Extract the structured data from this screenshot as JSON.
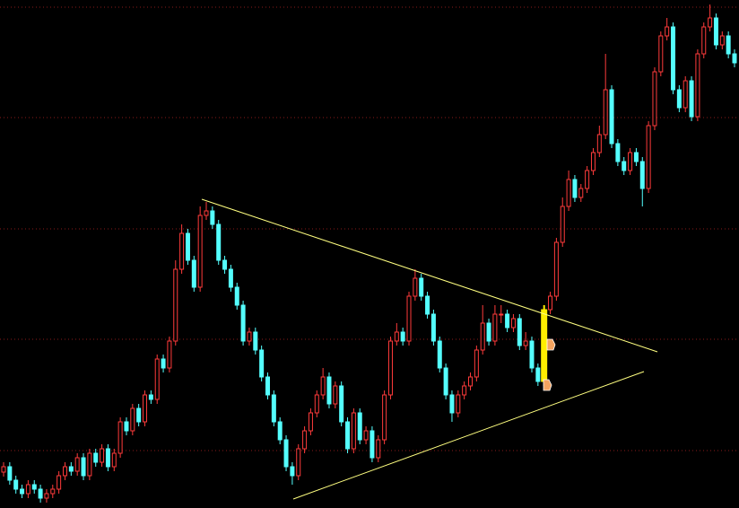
{
  "chart_data": {
    "type": "candlestick",
    "ylim": [
      0,
      566
    ],
    "up_color": "#ff3b3b",
    "down_color": "#54ffff",
    "highlight": {
      "index": 88,
      "color": "#ffee00"
    },
    "open": [
      40,
      46,
      31,
      21,
      16,
      26,
      21,
      11,
      16,
      21,
      36,
      46,
      41,
      56,
      36,
      61,
      51,
      66,
      46,
      61,
      96,
      86,
      111,
      96,
      126,
      121,
      166,
      156,
      186,
      266,
      306,
      276,
      246,
      326,
      331,
      316,
      276,
      266,
      246,
      226,
      186,
      196,
      176,
      146,
      126,
      96,
      76,
      46,
      36,
      66,
      86,
      106,
      126,
      146,
      116,
      136,
      96,
      66,
      106,
      76,
      86,
      56,
      76,
      126,
      186,
      196,
      186,
      236,
      256,
      236,
      216,
      186,
      156,
      126,
      106,
      126,
      136,
      146,
      176,
      206,
      186,
      216,
      216,
      201,
      211,
      181,
      186,
      156,
      141,
      221,
      236,
      296,
      336,
      366,
      346,
      356,
      376,
      396,
      416,
      466,
      406,
      386,
      376,
      396,
      386,
      356,
      426,
      486,
      526,
      536,
      466,
      446,
      476,
      436,
      506,
      536,
      546,
      516,
      526,
      506
    ],
    "high": [
      51,
      51,
      36,
      26,
      31,
      31,
      26,
      21,
      26,
      41,
      51,
      51,
      61,
      61,
      66,
      66,
      71,
      71,
      66,
      101,
      101,
      116,
      116,
      131,
      131,
      171,
      171,
      191,
      276,
      316,
      311,
      281,
      336,
      341,
      336,
      321,
      281,
      271,
      251,
      231,
      201,
      201,
      181,
      151,
      131,
      101,
      81,
      51,
      71,
      91,
      111,
      131,
      156,
      151,
      141,
      141,
      101,
      111,
      111,
      91,
      91,
      81,
      131,
      191,
      206,
      201,
      241,
      266,
      261,
      241,
      221,
      191,
      161,
      131,
      131,
      141,
      151,
      181,
      226,
      211,
      226,
      226,
      221,
      216,
      216,
      196,
      191,
      161,
      226,
      241,
      301,
      346,
      376,
      371,
      361,
      381,
      401,
      426,
      506,
      471,
      411,
      391,
      401,
      401,
      391,
      431,
      491,
      531,
      546,
      541,
      471,
      481,
      481,
      511,
      541,
      561,
      551,
      531,
      531,
      511
    ],
    "low": [
      35,
      26,
      16,
      11,
      11,
      16,
      6,
      6,
      11,
      16,
      31,
      36,
      36,
      31,
      31,
      46,
      46,
      41,
      41,
      56,
      81,
      81,
      91,
      91,
      116,
      116,
      151,
      151,
      181,
      261,
      271,
      241,
      241,
      321,
      311,
      271,
      261,
      241,
      221,
      181,
      181,
      171,
      141,
      121,
      91,
      71,
      41,
      26,
      31,
      61,
      81,
      101,
      121,
      111,
      111,
      91,
      61,
      61,
      71,
      71,
      51,
      51,
      71,
      121,
      181,
      181,
      181,
      231,
      231,
      211,
      181,
      151,
      121,
      96,
      101,
      121,
      131,
      141,
      171,
      181,
      181,
      206,
      196,
      196,
      176,
      176,
      151,
      136,
      136,
      216,
      231,
      291,
      331,
      341,
      341,
      351,
      371,
      391,
      411,
      401,
      381,
      371,
      371,
      381,
      336,
      351,
      421,
      481,
      521,
      461,
      441,
      441,
      431,
      431,
      501,
      531,
      511,
      511,
      501,
      491
    ],
    "close": [
      46,
      31,
      21,
      16,
      26,
      21,
      11,
      16,
      21,
      36,
      46,
      41,
      56,
      36,
      61,
      51,
      66,
      46,
      61,
      96,
      86,
      111,
      96,
      126,
      121,
      166,
      156,
      186,
      266,
      306,
      276,
      246,
      326,
      331,
      316,
      276,
      266,
      246,
      226,
      186,
      196,
      176,
      146,
      126,
      96,
      76,
      46,
      36,
      66,
      86,
      106,
      126,
      146,
      116,
      136,
      96,
      66,
      106,
      76,
      86,
      56,
      76,
      126,
      186,
      196,
      186,
      236,
      256,
      236,
      216,
      186,
      156,
      126,
      106,
      126,
      136,
      146,
      176,
      206,
      186,
      216,
      216,
      201,
      211,
      181,
      186,
      156,
      141,
      221,
      236,
      296,
      336,
      366,
      346,
      356,
      376,
      396,
      416,
      466,
      406,
      386,
      376,
      396,
      386,
      356,
      426,
      486,
      526,
      536,
      466,
      446,
      476,
      436,
      506,
      536,
      546,
      516,
      526,
      506,
      496
    ]
  }
}
